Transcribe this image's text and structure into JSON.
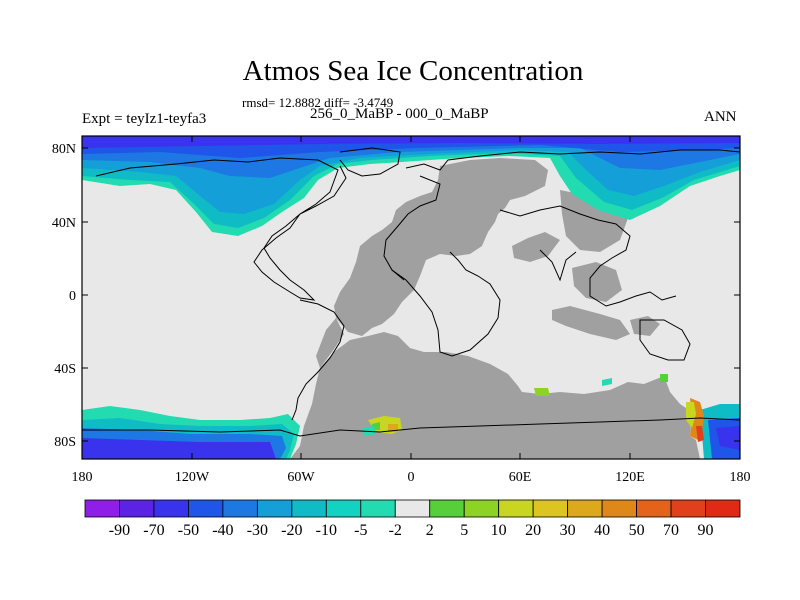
{
  "title": "Atmos Sea Ice Concentration",
  "stats": "rmsd= 12.8882 diff= -3.4749",
  "subtitle": "256_0_MaBP - 000_0_MaBP",
  "experiment": "Expt = teyIz1-teyfa3",
  "season": "ANN",
  "axes": {
    "x_ticks": [
      "180",
      "120W",
      "60W",
      "0",
      "60E",
      "120E",
      "180"
    ],
    "y_ticks": [
      "80N",
      "40N",
      "0",
      "40S",
      "80S"
    ]
  },
  "colorbar": {
    "labels": [
      "-90",
      "-70",
      "-50",
      "-40",
      "-30",
      "-20",
      "-10",
      "-5",
      "-2",
      "2",
      "5",
      "10",
      "20",
      "30",
      "40",
      "50",
      "70",
      "90"
    ],
    "colors": [
      "#8f1fe8",
      "#5b23e6",
      "#3933ee",
      "#1f55e8",
      "#1d78e3",
      "#159fd9",
      "#0fbcc6",
      "#12d3c2",
      "#23dbb0",
      "#e8e8e8",
      "#56cf3a",
      "#8dd324",
      "#c9d61f",
      "#dcc521",
      "#dca81c",
      "#e0871a",
      "#e4621a",
      "#e2401c",
      "#e02a16"
    ]
  },
  "legend_colors": {
    "land_mask": "#a0a0a0",
    "near_zero": "#e8e8e8"
  }
}
